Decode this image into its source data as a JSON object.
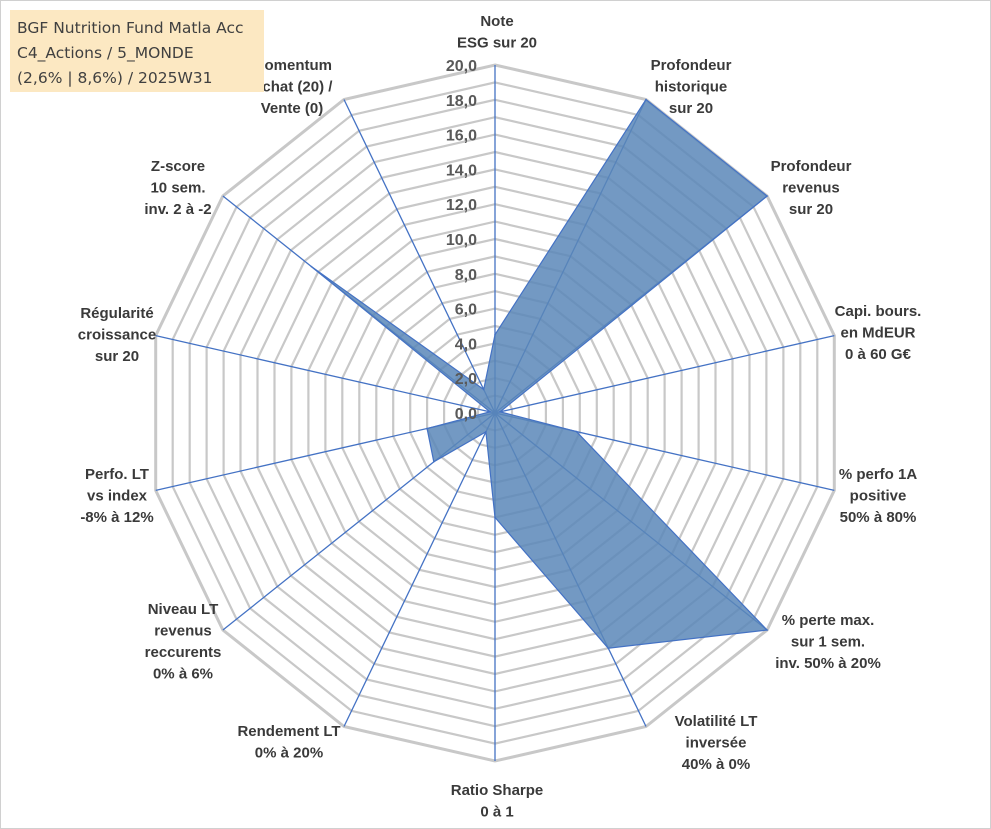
{
  "title_box": {
    "lines": [
      "BGF Nutrition Fund Matla Acc",
      "C4_Actions / 5_MONDE",
      "(2,6% | 8,6%) / 2025W31"
    ]
  },
  "colors": {
    "grid": "#c8c8c8",
    "spoke": "#4472c4",
    "fill": "#5b87b8",
    "outline": "#4472c4",
    "title_bg": "#fce8c2"
  },
  "chart_data": {
    "type": "radar",
    "rmin": 0,
    "rmax": 20,
    "tick_step": 1,
    "tick_labels": [
      "0,0",
      "2,0",
      "4,0",
      "6,0",
      "8,0",
      "10,0",
      "12,0",
      "14,0",
      "16,0",
      "18,0",
      "20,0"
    ],
    "axes": [
      {
        "label": [
          "Note",
          "ESG sur 20"
        ],
        "value": 4.5
      },
      {
        "label": [
          "Profondeur",
          "historique",
          "sur 20"
        ],
        "value": 20
      },
      {
        "label": [
          "Profondeur",
          "revenus",
          "sur 20"
        ],
        "value": 20
      },
      {
        "label": [
          "Capi. bours.",
          "en MdEUR",
          "0 à 60 G€"
        ],
        "value": 0.3
      },
      {
        "label": [
          "% perfo 1A",
          "positive",
          "50% à 80%"
        ],
        "value": 4.8
      },
      {
        "label": [
          "% perte max.",
          "sur 1 sem.",
          "inv. 50% à 20%"
        ],
        "value": 20
      },
      {
        "label": [
          "Volatilité LT",
          "inversée",
          "40% à 0%"
        ],
        "value": 15
      },
      {
        "label": [
          "Ratio Sharpe",
          "0 à 1"
        ],
        "value": 6
      },
      {
        "label": [
          "Rendement LT",
          "0% à 20%"
        ],
        "value": 1.2
      },
      {
        "label": [
          "Niveau LT",
          "revenus",
          "reccurents",
          "0% à 6%"
        ],
        "value": 4.5
      },
      {
        "label": [
          "Perfo. LT",
          "vs index",
          "-8% à 12%"
        ],
        "value": 4
      },
      {
        "label": [
          "Régularité",
          "croissance",
          "sur 20"
        ],
        "value": 0.3
      },
      {
        "label": [
          "Z-score",
          "10 sem.",
          "inv. 2 à -2"
        ],
        "value": 13.5
      },
      {
        "label": [
          "Momentum",
          "Achat (20) /",
          "Vente (0)"
        ],
        "value": 1.5
      }
    ]
  }
}
